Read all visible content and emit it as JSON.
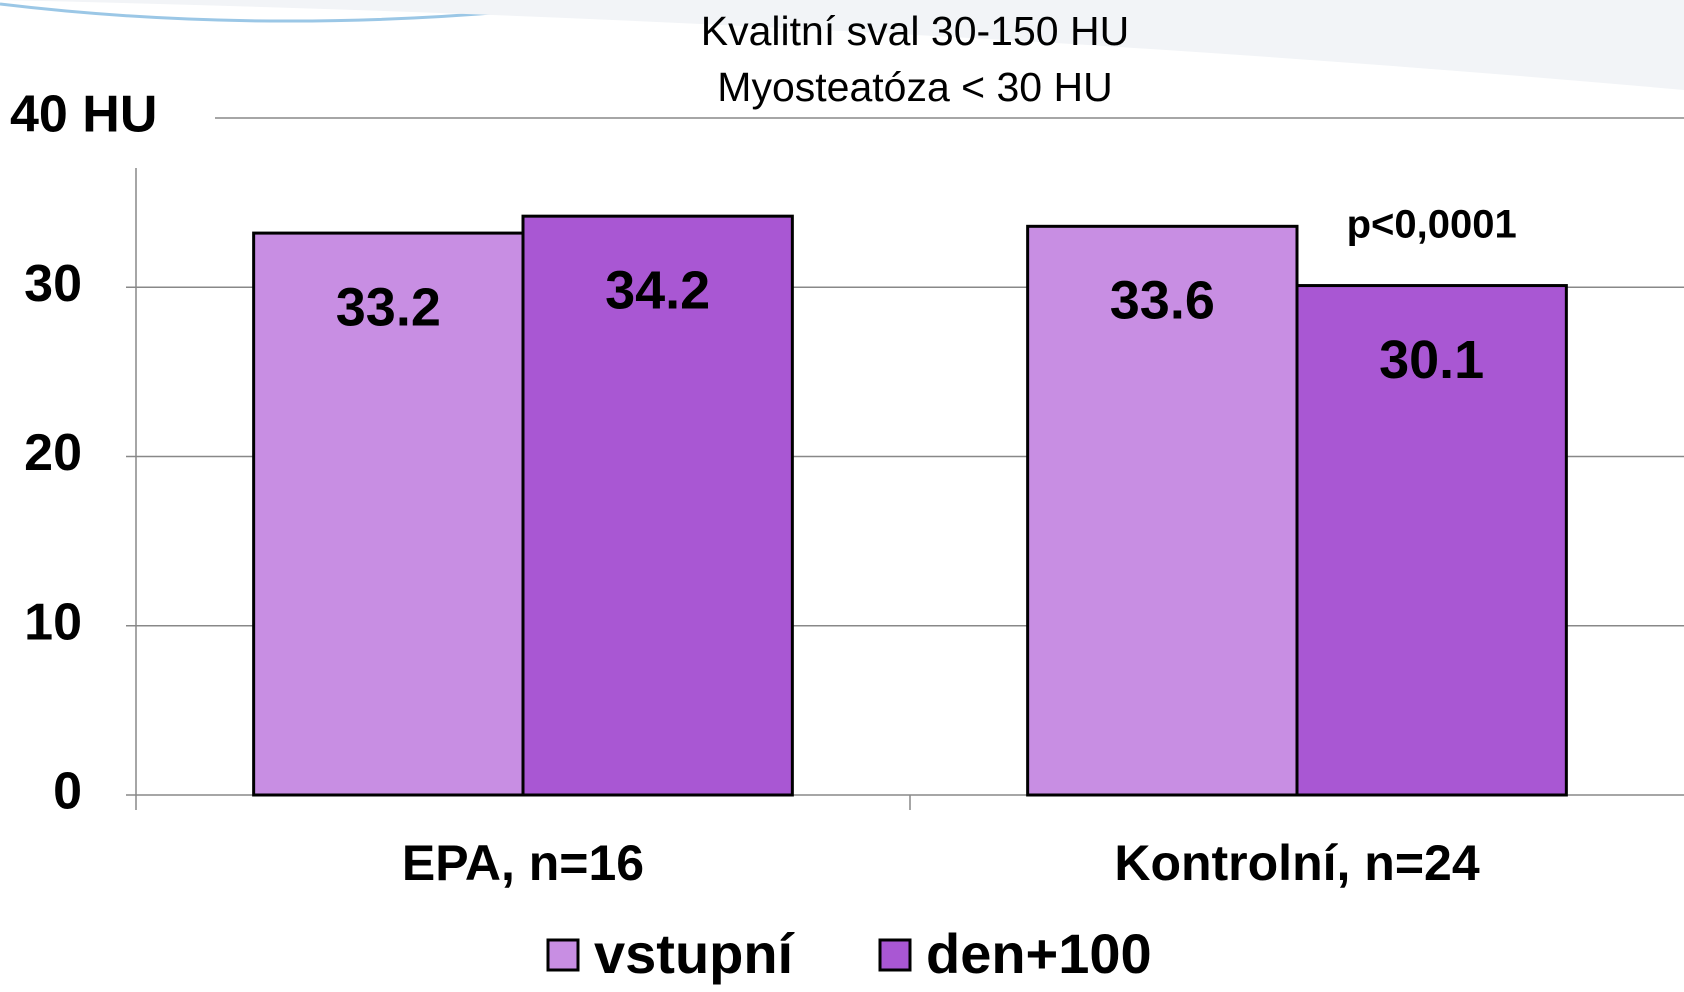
{
  "chart_data": {
    "type": "bar",
    "title": [
      "Kvalitní sval 30-150 HU",
      "Myosteatóza < 30 HU"
    ],
    "categories": [
      "EPA, n=16",
      "Kontrolní, n=24"
    ],
    "series": [
      {
        "name": "vstupní",
        "color": "#c88ee3",
        "values": [
          33.2,
          33.6
        ]
      },
      {
        "name": "den+100",
        "color": "#a957d3",
        "values": [
          34.2,
          30.1
        ]
      }
    ],
    "ylim": [
      0,
      40
    ],
    "yticks": [
      0,
      10,
      20,
      30,
      {
        "value": 40,
        "label": "40 HU"
      }
    ],
    "grid": true,
    "annotation": "p<0,0001"
  }
}
